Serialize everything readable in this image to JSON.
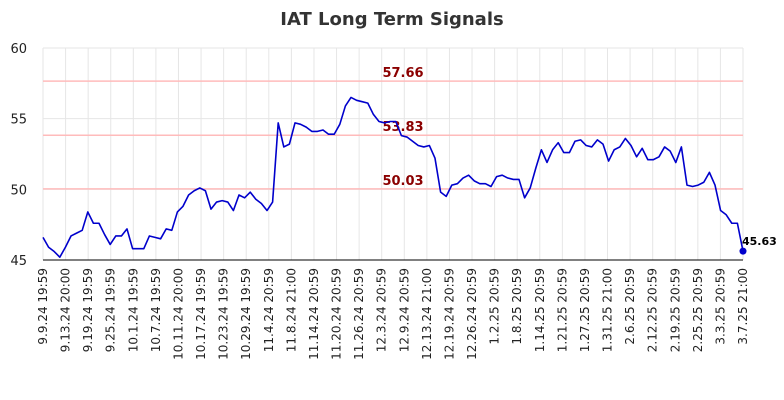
{
  "chart_data": {
    "type": "line",
    "title": "IAT Long Term Signals",
    "xlabel": "",
    "ylabel": "",
    "ylim": [
      45,
      60
    ],
    "yticks": [
      "45",
      "50",
      "55",
      "60"
    ],
    "grid": true,
    "x_tick_labels": [
      "9.9.24 19:59",
      "9.13.24 20:00",
      "9.19.24 19:59",
      "9.25.24 19:59",
      "10.1.24 19:59",
      "10.7.24 19:59",
      "10.11.24 20:00",
      "10.17.24 19:59",
      "10.23.24 19:59",
      "10.29.24 19:59",
      "11.4.24 20:59",
      "11.8.24 21:00",
      "11.14.24 20:59",
      "11.20.24 20:59",
      "11.26.24 20:59",
      "12.3.24 20:59",
      "12.9.24 20:59",
      "12.13.24 21:00",
      "12.19.24 20:59",
      "12.26.24 20:59",
      "1.2.25 20:59",
      "1.8.25 20:59",
      "1.14.25 20:59",
      "1.21.25 20:59",
      "1.27.25 20:59",
      "1.31.25 21:00",
      "2.6.25 20:59",
      "2.12.25 20:59",
      "2.19.25 20:59",
      "2.25.25 20:59",
      "3.3.25 20:59",
      "3.7.25 21:00"
    ],
    "levels": [
      {
        "value": 57.66,
        "label": "57.66"
      },
      {
        "value": 53.83,
        "label": "53.83"
      },
      {
        "value": 50.03,
        "label": "50.03"
      }
    ],
    "series": [
      {
        "values": [
          46.6,
          45.9,
          45.6,
          45.2,
          45.9,
          46.7,
          46.9,
          47.1,
          48.4,
          47.6,
          47.6,
          46.8,
          46.1,
          46.7,
          46.7,
          47.2,
          45.8,
          45.8,
          45.8,
          46.7,
          46.6,
          46.5,
          47.2,
          47.1,
          48.4,
          48.8,
          49.6,
          49.9,
          50.1,
          49.9,
          48.6,
          49.1,
          49.2,
          49.1,
          48.5,
          49.6,
          49.4,
          49.8,
          49.3,
          49.0,
          48.5,
          49.1,
          54.7,
          53.0,
          53.2,
          54.7,
          54.6,
          54.4,
          54.1,
          54.1,
          54.2,
          53.9,
          53.9,
          54.6,
          55.9,
          56.5,
          56.3,
          56.2,
          56.1,
          55.3,
          54.8,
          54.7,
          54.8,
          54.8,
          53.8,
          53.7,
          53.4,
          53.1,
          53.0,
          53.1,
          52.2,
          49.8,
          49.5,
          50.3,
          50.4,
          50.8,
          51.0,
          50.6,
          50.4,
          50.4,
          50.2,
          50.9,
          51.0,
          50.8,
          50.7,
          50.7,
          49.4,
          50.1,
          51.5,
          52.8,
          51.9,
          52.8,
          53.3,
          52.6,
          52.6,
          53.4,
          53.5,
          53.1,
          53.0,
          53.5,
          53.2,
          52.0,
          52.8,
          53.0,
          53.6,
          53.1,
          52.3,
          52.9,
          52.1,
          52.1,
          52.3,
          53.0,
          52.7,
          51.9,
          53.0,
          50.3,
          50.2,
          50.3,
          50.5,
          51.2,
          50.3,
          48.5,
          48.2,
          47.6,
          47.6,
          45.63
        ]
      }
    ],
    "last_value": {
      "value": 45.63,
      "label": "45.63"
    },
    "colors": {
      "line": "#0000cc",
      "level_line": "#ffbbbb",
      "level_text": "#8b0000",
      "grid": "#e6e6e6",
      "axis": "#000000"
    }
  }
}
